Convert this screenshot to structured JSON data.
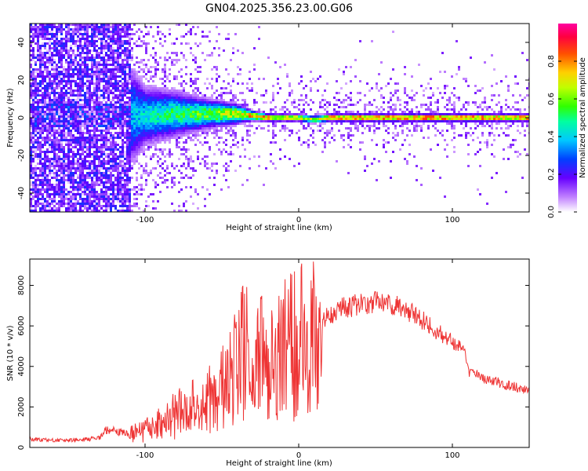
{
  "figure_title": "GN04.2025.356.23.00.G06",
  "chart_data": [
    {
      "type": "heatmap",
      "xlabel": "Height of straight line (km)",
      "ylabel": "Frequency (Hz)",
      "xlim": [
        -175,
        150
      ],
      "ylim": [
        -50,
        50
      ],
      "x_ticks": [
        -100,
        0,
        100
      ],
      "y_ticks": [
        -40,
        -20,
        0,
        20,
        40
      ],
      "colorbar": {
        "label": "Normalized spectral amplitude",
        "range": [
          0,
          1
        ],
        "ticks": [
          "0.0",
          "0.2",
          "0.4",
          "0.6",
          "0.8"
        ]
      },
      "ridge": {
        "x": [
          -175,
          -140,
          -120,
          -100,
          -80,
          -60,
          -40,
          -30,
          -20,
          0,
          10,
          20,
          50,
          100,
          150
        ],
        "frequency": [
          1,
          1,
          1,
          1,
          2,
          2,
          2,
          1,
          0,
          0,
          -1,
          0,
          0,
          0,
          0
        ],
        "amplitude": [
          0.15,
          0.2,
          0.35,
          0.45,
          0.55,
          0.62,
          0.75,
          0.85,
          0.9,
          0.75,
          0.7,
          0.9,
          0.92,
          0.95,
          0.9
        ],
        "spread_hz": [
          50,
          50,
          30,
          12,
          9,
          6,
          4,
          2,
          1.5,
          1.5,
          1.5,
          1.5,
          1.5,
          1.5,
          1.5
        ]
      }
    },
    {
      "type": "line",
      "xlabel": "Height of straight line (km)",
      "ylabel": "SNR (10 * v/v)",
      "xlim": [
        -175,
        150
      ],
      "ylim": [
        0,
        9300
      ],
      "x_ticks": [
        -100,
        0,
        100
      ],
      "y_ticks": [
        0,
        2000,
        4000,
        6000,
        8000
      ],
      "color": "#ee3333",
      "series": [
        {
          "x": [
            -175,
            -150,
            -130,
            -125,
            -110,
            -100,
            -80,
            -60,
            -45,
            -35,
            -30,
            -25,
            -20,
            -10,
            0,
            10,
            20,
            30,
            40,
            50,
            60,
            70,
            80,
            90,
            100,
            105,
            108,
            110,
            120,
            130,
            140,
            150
          ],
          "values": [
            400,
            350,
            450,
            900,
            650,
            800,
            1600,
            2300,
            3300,
            5100,
            2800,
            4500,
            3600,
            4700,
            5300,
            5700,
            6600,
            6900,
            7100,
            7200,
            7100,
            6800,
            6300,
            5700,
            5200,
            5000,
            4700,
            3800,
            3400,
            3200,
            3000,
            2800
          ]
        }
      ]
    }
  ]
}
